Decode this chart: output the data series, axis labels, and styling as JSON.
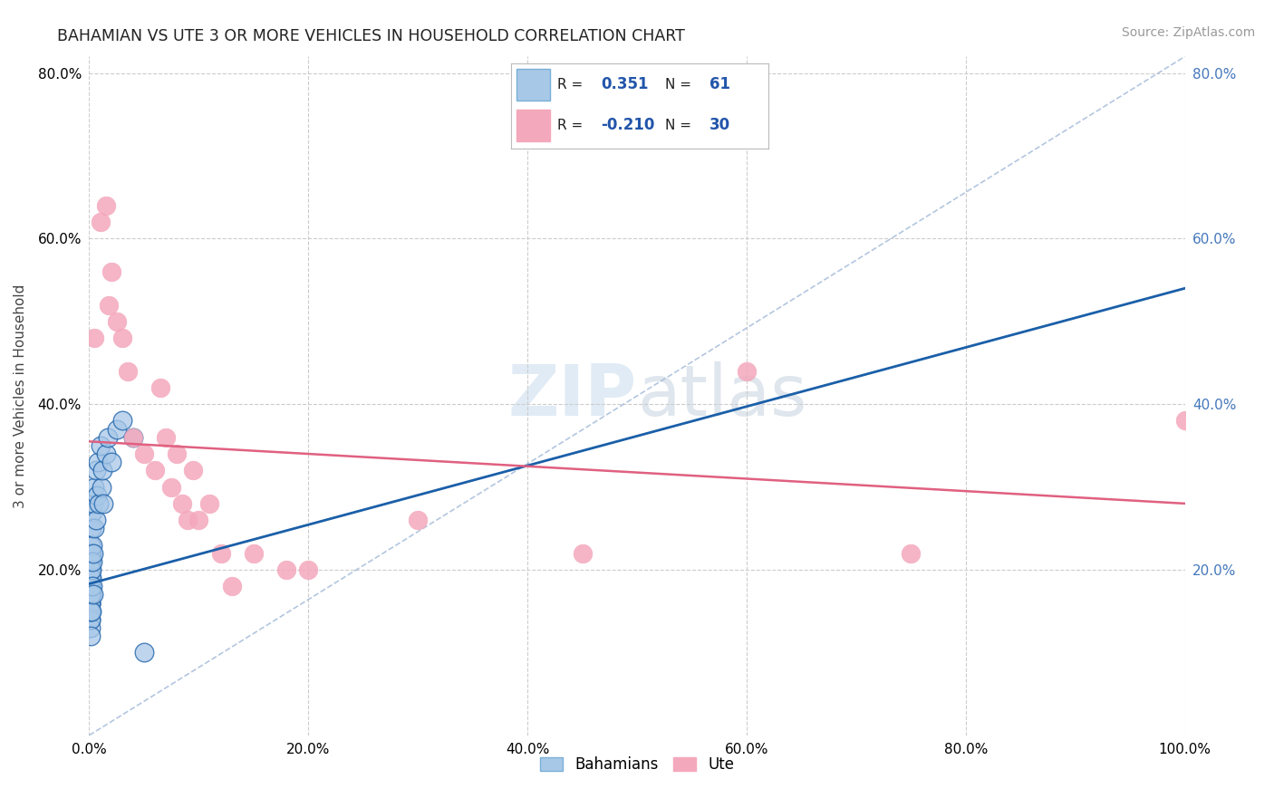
{
  "title": "BAHAMIAN VS UTE 3 OR MORE VEHICLES IN HOUSEHOLD CORRELATION CHART",
  "source": "Source: ZipAtlas.com",
  "ylabel": "3 or more Vehicles in Household",
  "legend_label1": "Bahamians",
  "legend_label2": "Ute",
  "R1": "0.351",
  "N1": "61",
  "R2": "-0.210",
  "N2": "30",
  "color1": "#a8c8e8",
  "color2": "#f4a8bc",
  "line_color1": "#1a5fa8",
  "line_color2": "#e06080",
  "diag_color": "#a0b8d8",
  "background": "#ffffff",
  "watermark_zip": "ZIP",
  "watermark_atlas": "atlas",
  "xmin": 0.0,
  "xmax": 1.0,
  "ymin": 0.0,
  "ymax": 0.82,
  "bahamian_points": [
    [
      0.0005,
      0.18
    ],
    [
      0.001,
      0.2
    ],
    [
      0.001,
      0.16
    ],
    [
      0.001,
      0.22
    ],
    [
      0.001,
      0.17
    ],
    [
      0.001,
      0.19
    ],
    [
      0.001,
      0.15
    ],
    [
      0.001,
      0.21
    ],
    [
      0.001,
      0.14
    ],
    [
      0.001,
      0.23
    ],
    [
      0.001,
      0.18
    ],
    [
      0.001,
      0.2
    ],
    [
      0.001,
      0.16
    ],
    [
      0.001,
      0.19
    ],
    [
      0.001,
      0.17
    ],
    [
      0.001,
      0.21
    ],
    [
      0.001,
      0.15
    ],
    [
      0.001,
      0.18
    ],
    [
      0.001,
      0.2
    ],
    [
      0.001,
      0.13
    ],
    [
      0.001,
      0.22
    ],
    [
      0.001,
      0.16
    ],
    [
      0.001,
      0.19
    ],
    [
      0.001,
      0.14
    ],
    [
      0.001,
      0.17
    ],
    [
      0.001,
      0.2
    ],
    [
      0.001,
      0.15
    ],
    [
      0.001,
      0.18
    ],
    [
      0.001,
      0.12
    ],
    [
      0.001,
      0.21
    ],
    [
      0.002,
      0.19
    ],
    [
      0.002,
      0.22
    ],
    [
      0.002,
      0.17
    ],
    [
      0.002,
      0.25
    ],
    [
      0.002,
      0.2
    ],
    [
      0.002,
      0.15
    ],
    [
      0.003,
      0.23
    ],
    [
      0.003,
      0.18
    ],
    [
      0.003,
      0.27
    ],
    [
      0.003,
      0.21
    ],
    [
      0.004,
      0.28
    ],
    [
      0.004,
      0.22
    ],
    [
      0.004,
      0.17
    ],
    [
      0.005,
      0.3
    ],
    [
      0.005,
      0.25
    ],
    [
      0.006,
      0.32
    ],
    [
      0.006,
      0.26
    ],
    [
      0.007,
      0.29
    ],
    [
      0.008,
      0.33
    ],
    [
      0.009,
      0.28
    ],
    [
      0.01,
      0.35
    ],
    [
      0.011,
      0.3
    ],
    [
      0.012,
      0.32
    ],
    [
      0.013,
      0.28
    ],
    [
      0.015,
      0.34
    ],
    [
      0.017,
      0.36
    ],
    [
      0.02,
      0.33
    ],
    [
      0.025,
      0.37
    ],
    [
      0.03,
      0.38
    ],
    [
      0.04,
      0.36
    ],
    [
      0.05,
      0.1
    ]
  ],
  "ute_points": [
    [
      0.005,
      0.48
    ],
    [
      0.01,
      0.62
    ],
    [
      0.015,
      0.64
    ],
    [
      0.018,
      0.52
    ],
    [
      0.02,
      0.56
    ],
    [
      0.025,
      0.5
    ],
    [
      0.03,
      0.48
    ],
    [
      0.035,
      0.44
    ],
    [
      0.04,
      0.36
    ],
    [
      0.05,
      0.34
    ],
    [
      0.06,
      0.32
    ],
    [
      0.065,
      0.42
    ],
    [
      0.07,
      0.36
    ],
    [
      0.075,
      0.3
    ],
    [
      0.08,
      0.34
    ],
    [
      0.085,
      0.28
    ],
    [
      0.09,
      0.26
    ],
    [
      0.095,
      0.32
    ],
    [
      0.1,
      0.26
    ],
    [
      0.11,
      0.28
    ],
    [
      0.12,
      0.22
    ],
    [
      0.13,
      0.18
    ],
    [
      0.15,
      0.22
    ],
    [
      0.18,
      0.2
    ],
    [
      0.2,
      0.2
    ],
    [
      0.3,
      0.26
    ],
    [
      0.45,
      0.22
    ],
    [
      0.6,
      0.44
    ],
    [
      0.75,
      0.22
    ],
    [
      1.0,
      0.38
    ]
  ],
  "blue_line": [
    0.0,
    0.183,
    1.0,
    0.54
  ],
  "pink_line": [
    0.0,
    0.355,
    1.0,
    0.28
  ]
}
